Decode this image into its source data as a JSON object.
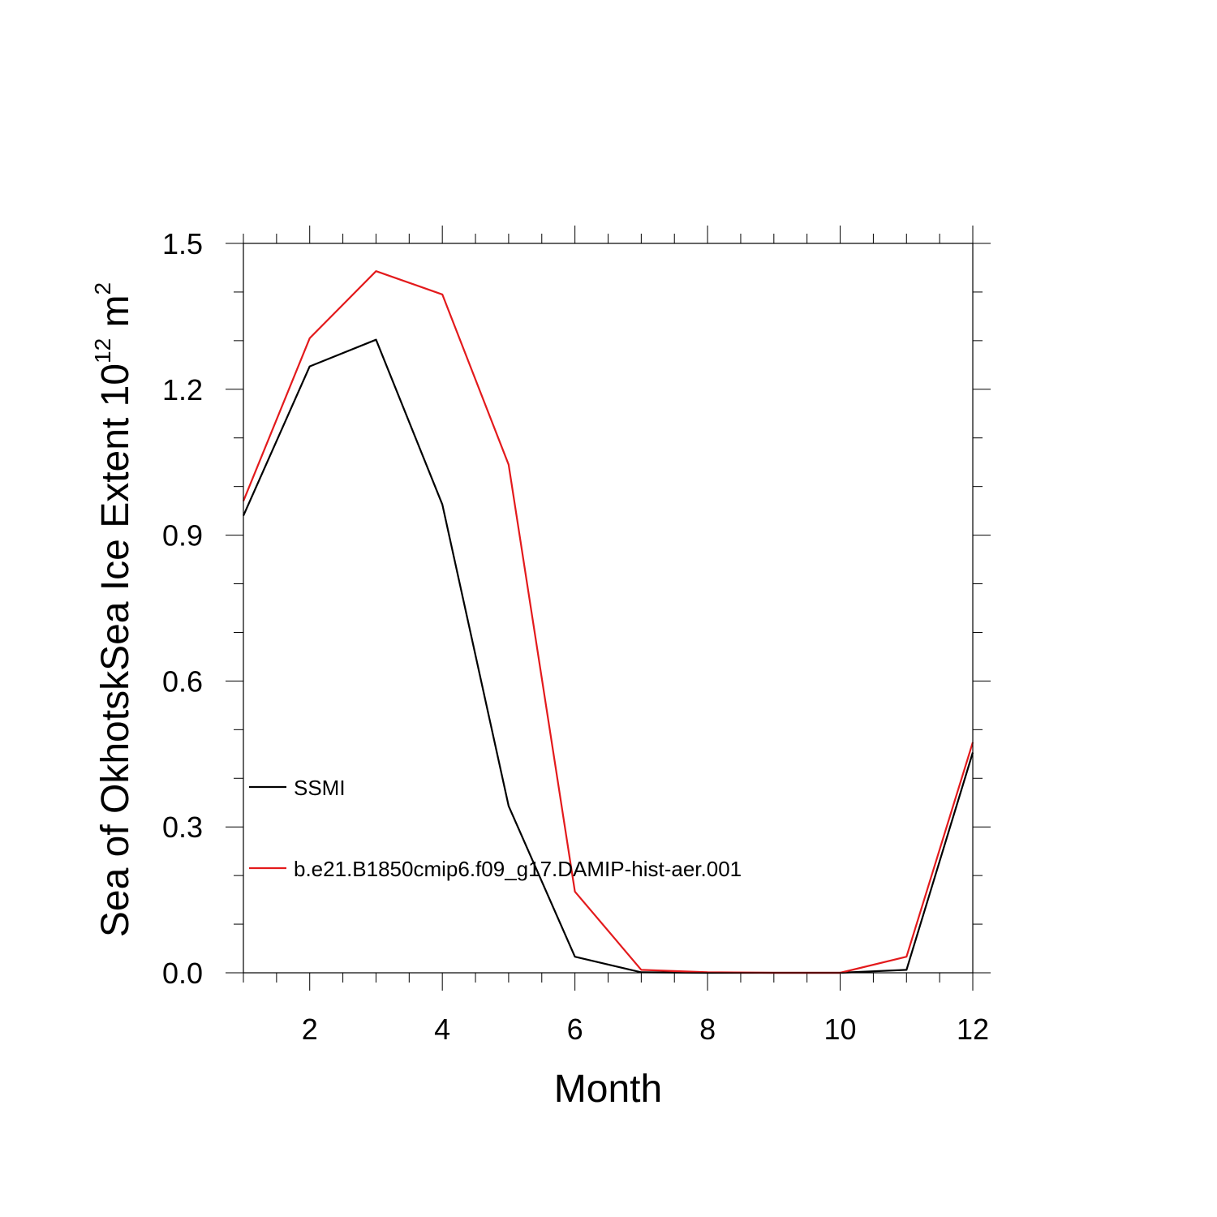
{
  "chart_data": {
    "type": "line",
    "xlabel": "Month",
    "ylabel_main": "Sea of OkhotskSea Ice Extent 10",
    "ylabel_exponent": "12",
    "ylabel_unit": " m",
    "ylabel_unit_exponent": "2",
    "xlim": [
      1,
      12
    ],
    "ylim": [
      0,
      1.5
    ],
    "xticks": [
      2,
      4,
      6,
      8,
      10,
      12
    ],
    "yticks": [
      0.0,
      0.3,
      0.6,
      0.9,
      1.2,
      1.5
    ],
    "ytick_labels": [
      "0.0",
      "0.3",
      "0.6",
      "0.9",
      "1.2",
      "1.5"
    ],
    "grid": false,
    "legend_position": "left-middle",
    "x": [
      1,
      2,
      3,
      4,
      5,
      6,
      7,
      8,
      9,
      10,
      11,
      12
    ],
    "series": [
      {
        "name": "SSMI",
        "color": "#000000",
        "values": [
          0.94,
          1.247,
          1.302,
          0.963,
          0.343,
          0.033,
          0.001,
          0.0,
          0.0,
          0.0,
          0.006,
          0.453
        ]
      },
      {
        "name": "b.e21.B1850cmip6.f09_g17.DAMIP-hist-aer.001",
        "color": "#e31a1c",
        "values": [
          0.97,
          1.305,
          1.443,
          1.395,
          1.045,
          0.167,
          0.006,
          0.001,
          0.0,
          0.0,
          0.033,
          0.474
        ]
      }
    ]
  }
}
